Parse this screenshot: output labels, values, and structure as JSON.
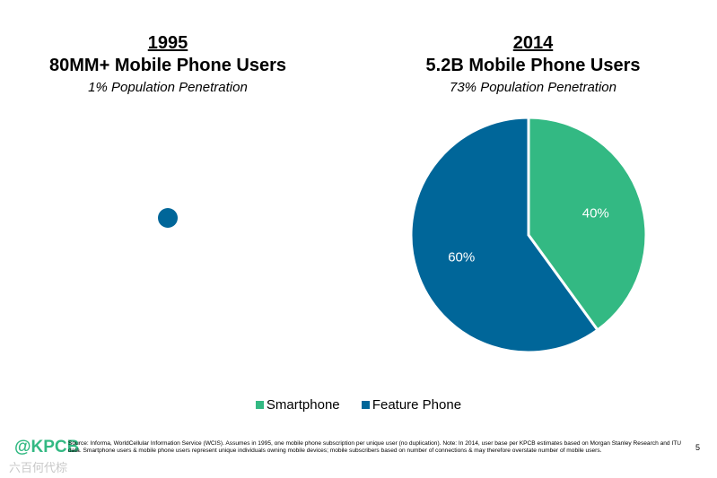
{
  "colors": {
    "smartphone": "#33b983",
    "feature_phone": "#006699"
  },
  "chart_data": [
    {
      "type": "pie",
      "year": "1995",
      "title": "80MM+ Mobile Phone Users",
      "subtitle": "1% Population Penetration",
      "categories": [
        "Feature Phone"
      ],
      "values": [
        100
      ],
      "data_labels": [
        ""
      ]
    },
    {
      "type": "pie",
      "year": "2014",
      "title": "5.2B Mobile Phone Users",
      "subtitle": "73% Population Penetration",
      "categories": [
        "Smartphone",
        "Feature Phone"
      ],
      "values": [
        40,
        60
      ],
      "data_labels": [
        "40%",
        "60%"
      ]
    }
  ],
  "legend": [
    {
      "label": "Smartphone",
      "color_key": "smartphone"
    },
    {
      "label": "Feature Phone",
      "color_key": "feature_phone"
    }
  ],
  "footer": {
    "logo": "@KPCB",
    "watermark": "六百何代棕",
    "source_note": "Source: Informa, WorldCellular Information Service (WCIS). Assumes in 1995, one mobile phone subscription per unique user (no duplication). Note: In 2014, user base per KPCB estimates based on Morgan Stanley Research and ITU data. Smartphone users & mobile phone users represent unique individuals owning mobile devices; mobile subscribers based on number of connections & may therefore overstate number of mobile users.",
    "page_number": "5"
  }
}
